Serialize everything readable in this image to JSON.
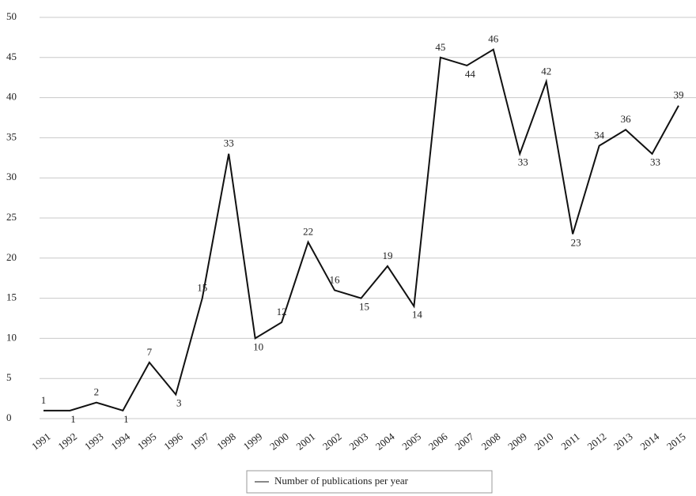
{
  "chart_data": {
    "type": "line",
    "categories": [
      "1991",
      "1992",
      "1993",
      "1994",
      "1995",
      "1996",
      "1997",
      "1998",
      "1999",
      "2000",
      "2001",
      "2002",
      "2003",
      "2004",
      "2005",
      "2006",
      "2007",
      "2008",
      "2009",
      "2010",
      "2011",
      "2012",
      "2013",
      "2014",
      "2015"
    ],
    "series": [
      {
        "name": "Number of publications per year",
        "color": "#111111",
        "values": [
          1,
          1,
          2,
          1,
          7,
          3,
          15,
          33,
          10,
          12,
          22,
          16,
          15,
          19,
          14,
          45,
          44,
          46,
          33,
          42,
          23,
          34,
          36,
          33,
          39
        ]
      }
    ],
    "ylim": [
      0,
      50
    ],
    "yticks": [
      0,
      5,
      10,
      15,
      20,
      25,
      30,
      35,
      40,
      45,
      50
    ],
    "grid": true,
    "legend": "bottom"
  }
}
